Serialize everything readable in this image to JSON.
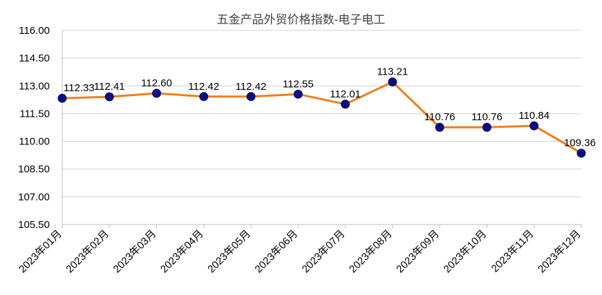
{
  "chart_data": {
    "type": "line",
    "title": "五金产品外贸价格指数-电子电工",
    "categories": [
      "2023年01月",
      "2023年02月",
      "2023年03月",
      "2023年04月",
      "2023年05月",
      "2023年06月",
      "2023年07月",
      "2023年08月",
      "2023年09月",
      "2023年10月",
      "2023年11月",
      "2023年12月"
    ],
    "values": [
      112.33,
      112.41,
      112.6,
      112.42,
      112.42,
      112.55,
      112.01,
      113.21,
      110.76,
      110.76,
      110.84,
      109.36
    ],
    "value_labels": [
      "112.33",
      "112.41",
      "112.60",
      "112.42",
      "112.42",
      "112.55",
      "112.01",
      "113.21",
      "110.76",
      "110.76",
      "110.84",
      "109.36"
    ],
    "yticks": [
      "116.00",
      "114.50",
      "113.00",
      "111.50",
      "110.00",
      "108.50",
      "107.00",
      "105.50"
    ],
    "ylim": [
      105.5,
      116.0
    ],
    "xlabel": "",
    "ylabel": "",
    "grid": true,
    "legend": "none",
    "line_color": "#F07D1C",
    "marker_color": "#0D0D7A"
  }
}
